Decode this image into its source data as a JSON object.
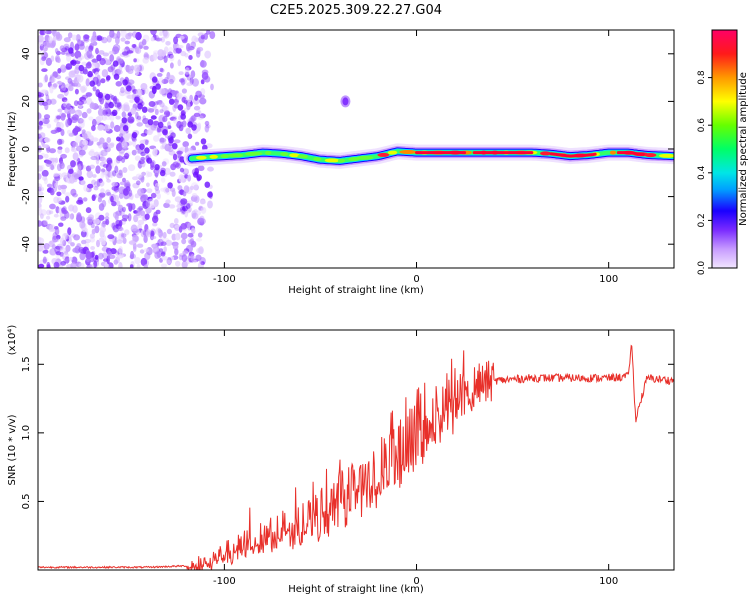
{
  "title": "C2E5.2025.309.22.27.G04",
  "chart_data": [
    {
      "type": "heatmap",
      "title": "C2E5.2025.309.22.27.G04",
      "xlabel": "Height of straight line (km)",
      "ylabel": "Frequency (Hz)",
      "xlim": [
        -197,
        134
      ],
      "ylim": [
        -50,
        50
      ],
      "xticks": [
        -100,
        0,
        100
      ],
      "xtick_labels": [
        "-100",
        "0",
        "100"
      ],
      "yticks": [
        -40,
        -20,
        0,
        20,
        40
      ],
      "ytick_labels": [
        "-40",
        "-20",
        "0",
        "20",
        "40"
      ],
      "colorbar": {
        "label": "Normalized spectral amplitude",
        "range": [
          0,
          1
        ],
        "ticks": [
          0.0,
          0.2,
          0.4,
          0.6,
          0.8
        ],
        "tick_labels": [
          "0.0",
          "0.2",
          "0.4",
          "0.6",
          "0.8"
        ],
        "colors": [
          "#f2e6ff",
          "#9a4dff",
          "#1a00ff",
          "#00d9ff",
          "#00ff66",
          "#d9ff00",
          "#ff8800",
          "#ff0033",
          "#ff0066"
        ]
      },
      "features": {
        "noise_region_x": [
          -197,
          -105
        ],
        "ridge_x": [
          -117,
          134
        ],
        "ridge_freq_hz": [
          [
            -117,
            -4
          ],
          [
            -110,
            -3.5
          ],
          [
            -100,
            -3
          ],
          [
            -90,
            -2.5
          ],
          [
            -80,
            -1.5
          ],
          [
            -70,
            -2
          ],
          [
            -60,
            -3
          ],
          [
            -50,
            -4.5
          ],
          [
            -40,
            -5
          ],
          [
            -30,
            -4
          ],
          [
            -20,
            -3
          ],
          [
            -10,
            -1
          ],
          [
            0,
            -1.5
          ],
          [
            20,
            -1.5
          ],
          [
            40,
            -1.5
          ],
          [
            60,
            -1.5
          ],
          [
            70,
            -2
          ],
          [
            80,
            -3
          ],
          [
            90,
            -2.5
          ],
          [
            100,
            -1.5
          ],
          [
            110,
            -1.5
          ],
          [
            120,
            -2.5
          ],
          [
            134,
            -3
          ]
        ],
        "isolated_blob": {
          "x": -37,
          "freq_hz": 20
        }
      }
    },
    {
      "type": "line",
      "xlabel": "Height of straight line (km)",
      "ylabel": "SNR (10 * v/v)",
      "y_multiplier_label": "(x10⁴)",
      "xlim": [
        -197,
        134
      ],
      "ylim": [
        0,
        1.75
      ],
      "xticks": [
        -100,
        0,
        100
      ],
      "xtick_labels": [
        "-100",
        "0",
        "100"
      ],
      "yticks": [
        0.5,
        1.0,
        1.5
      ],
      "ytick_labels": [
        "0.5",
        "1.0",
        "1.5"
      ],
      "series": [
        {
          "name": "SNR",
          "color": "#e8302a",
          "x": [
            -197,
            -180,
            -160,
            -140,
            -120,
            -110,
            -100,
            -90,
            -80,
            -70,
            -60,
            -50,
            -40,
            -30,
            -20,
            -10,
            0,
            10,
            20,
            30,
            40,
            50,
            60,
            70,
            80,
            90,
            100,
            110,
            112,
            114,
            120,
            134
          ],
          "values": [
            0.02,
            0.02,
            0.02,
            0.02,
            0.03,
            0.06,
            0.12,
            0.2,
            0.26,
            0.3,
            0.35,
            0.42,
            0.52,
            0.62,
            0.72,
            0.85,
            1.0,
            1.12,
            1.25,
            1.34,
            1.38,
            1.39,
            1.4,
            1.4,
            1.4,
            1.4,
            1.4,
            1.41,
            1.65,
            1.1,
            1.4,
            1.38
          ]
        }
      ]
    }
  ]
}
